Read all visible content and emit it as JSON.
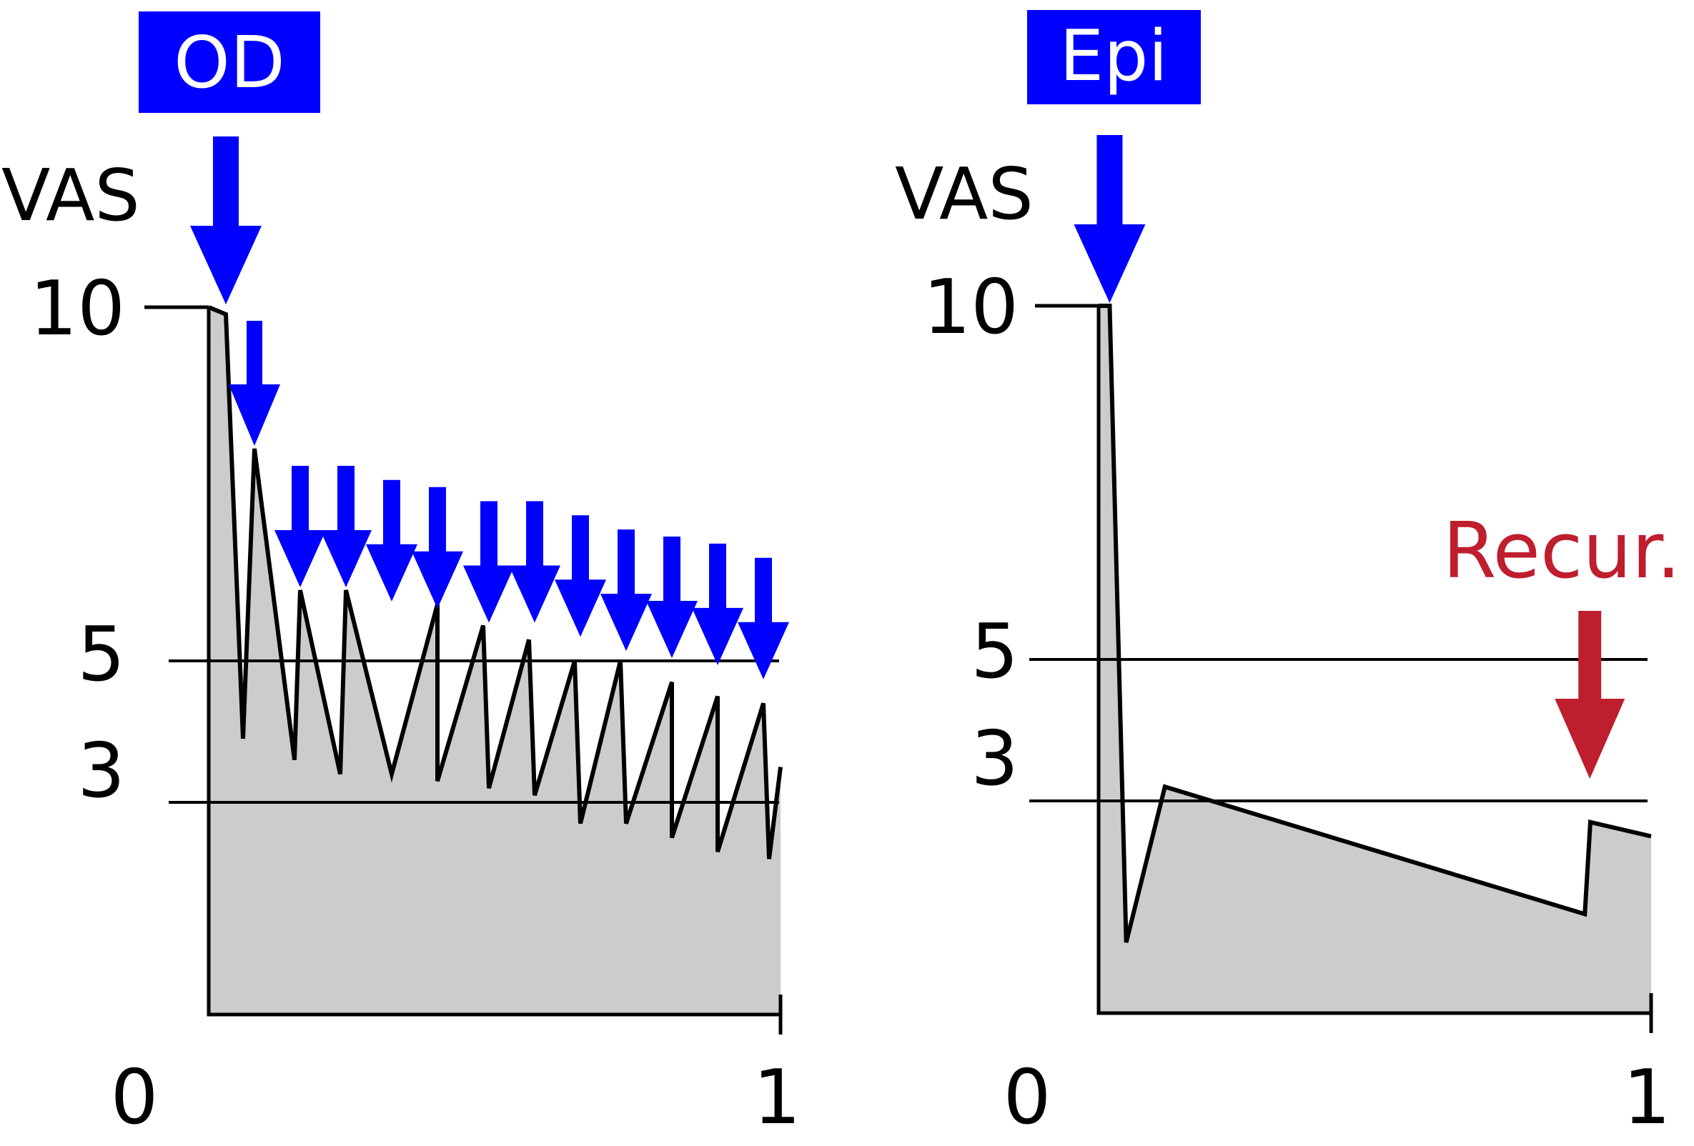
{
  "colors": {
    "drug_arrow": "#0000ff",
    "recurrence": "#be1e2d",
    "area_fill": "#cccccc",
    "line": "#000000"
  },
  "chart_data": [
    {
      "type": "area",
      "ylabel": "VAS",
      "drug_label": "OD",
      "xlim": [
        0,
        1
      ],
      "ylim": [
        0,
        10
      ],
      "x_ticks": [
        "0",
        "1"
      ],
      "y_ticks": [
        "3",
        "5",
        "10"
      ],
      "reference_lines": [
        5,
        3
      ],
      "dose_times": [
        0.03,
        0.08,
        0.16,
        0.24,
        0.32,
        0.4,
        0.49,
        0.57,
        0.65,
        0.73,
        0.81,
        0.89,
        0.97
      ],
      "series": [
        {
          "x": [
            0.0,
            0.03,
            0.06,
            0.08,
            0.15,
            0.16,
            0.23,
            0.24,
            0.32,
            0.4,
            0.4,
            0.48,
            0.49,
            0.56,
            0.57,
            0.64,
            0.65,
            0.72,
            0.73,
            0.81,
            0.81,
            0.89,
            0.89,
            0.97,
            0.98,
            1.0
          ],
          "y": [
            10.0,
            9.9,
            3.9,
            8.0,
            3.6,
            6.0,
            3.4,
            6.0,
            3.4,
            5.8,
            3.3,
            5.5,
            3.2,
            5.3,
            3.1,
            5.0,
            2.7,
            5.0,
            2.7,
            4.7,
            2.5,
            4.5,
            2.3,
            4.4,
            2.2,
            3.5
          ]
        }
      ],
      "arrows_y": [
        10.0,
        8.0,
        6.0,
        6.0,
        5.8,
        5.7,
        5.5,
        5.5,
        5.3,
        5.1,
        5.0,
        4.9,
        4.7
      ]
    },
    {
      "type": "area",
      "ylabel": "VAS",
      "drug_label": "Epi",
      "annotation": "Recur.",
      "xlim": [
        0,
        1
      ],
      "ylim": [
        0,
        10
      ],
      "x_ticks": [
        "0",
        "1"
      ],
      "y_ticks": [
        "3",
        "5",
        "10"
      ],
      "reference_lines": [
        5,
        3
      ],
      "dose_times": [
        0.02
      ],
      "recurrence_time": 0.88,
      "series": [
        {
          "x": [
            0.0,
            0.02,
            0.05,
            0.12,
            0.88,
            0.89,
            1.0
          ],
          "y": [
            10.0,
            10.0,
            1.0,
            3.2,
            1.4,
            2.7,
            2.5
          ]
        }
      ]
    }
  ]
}
